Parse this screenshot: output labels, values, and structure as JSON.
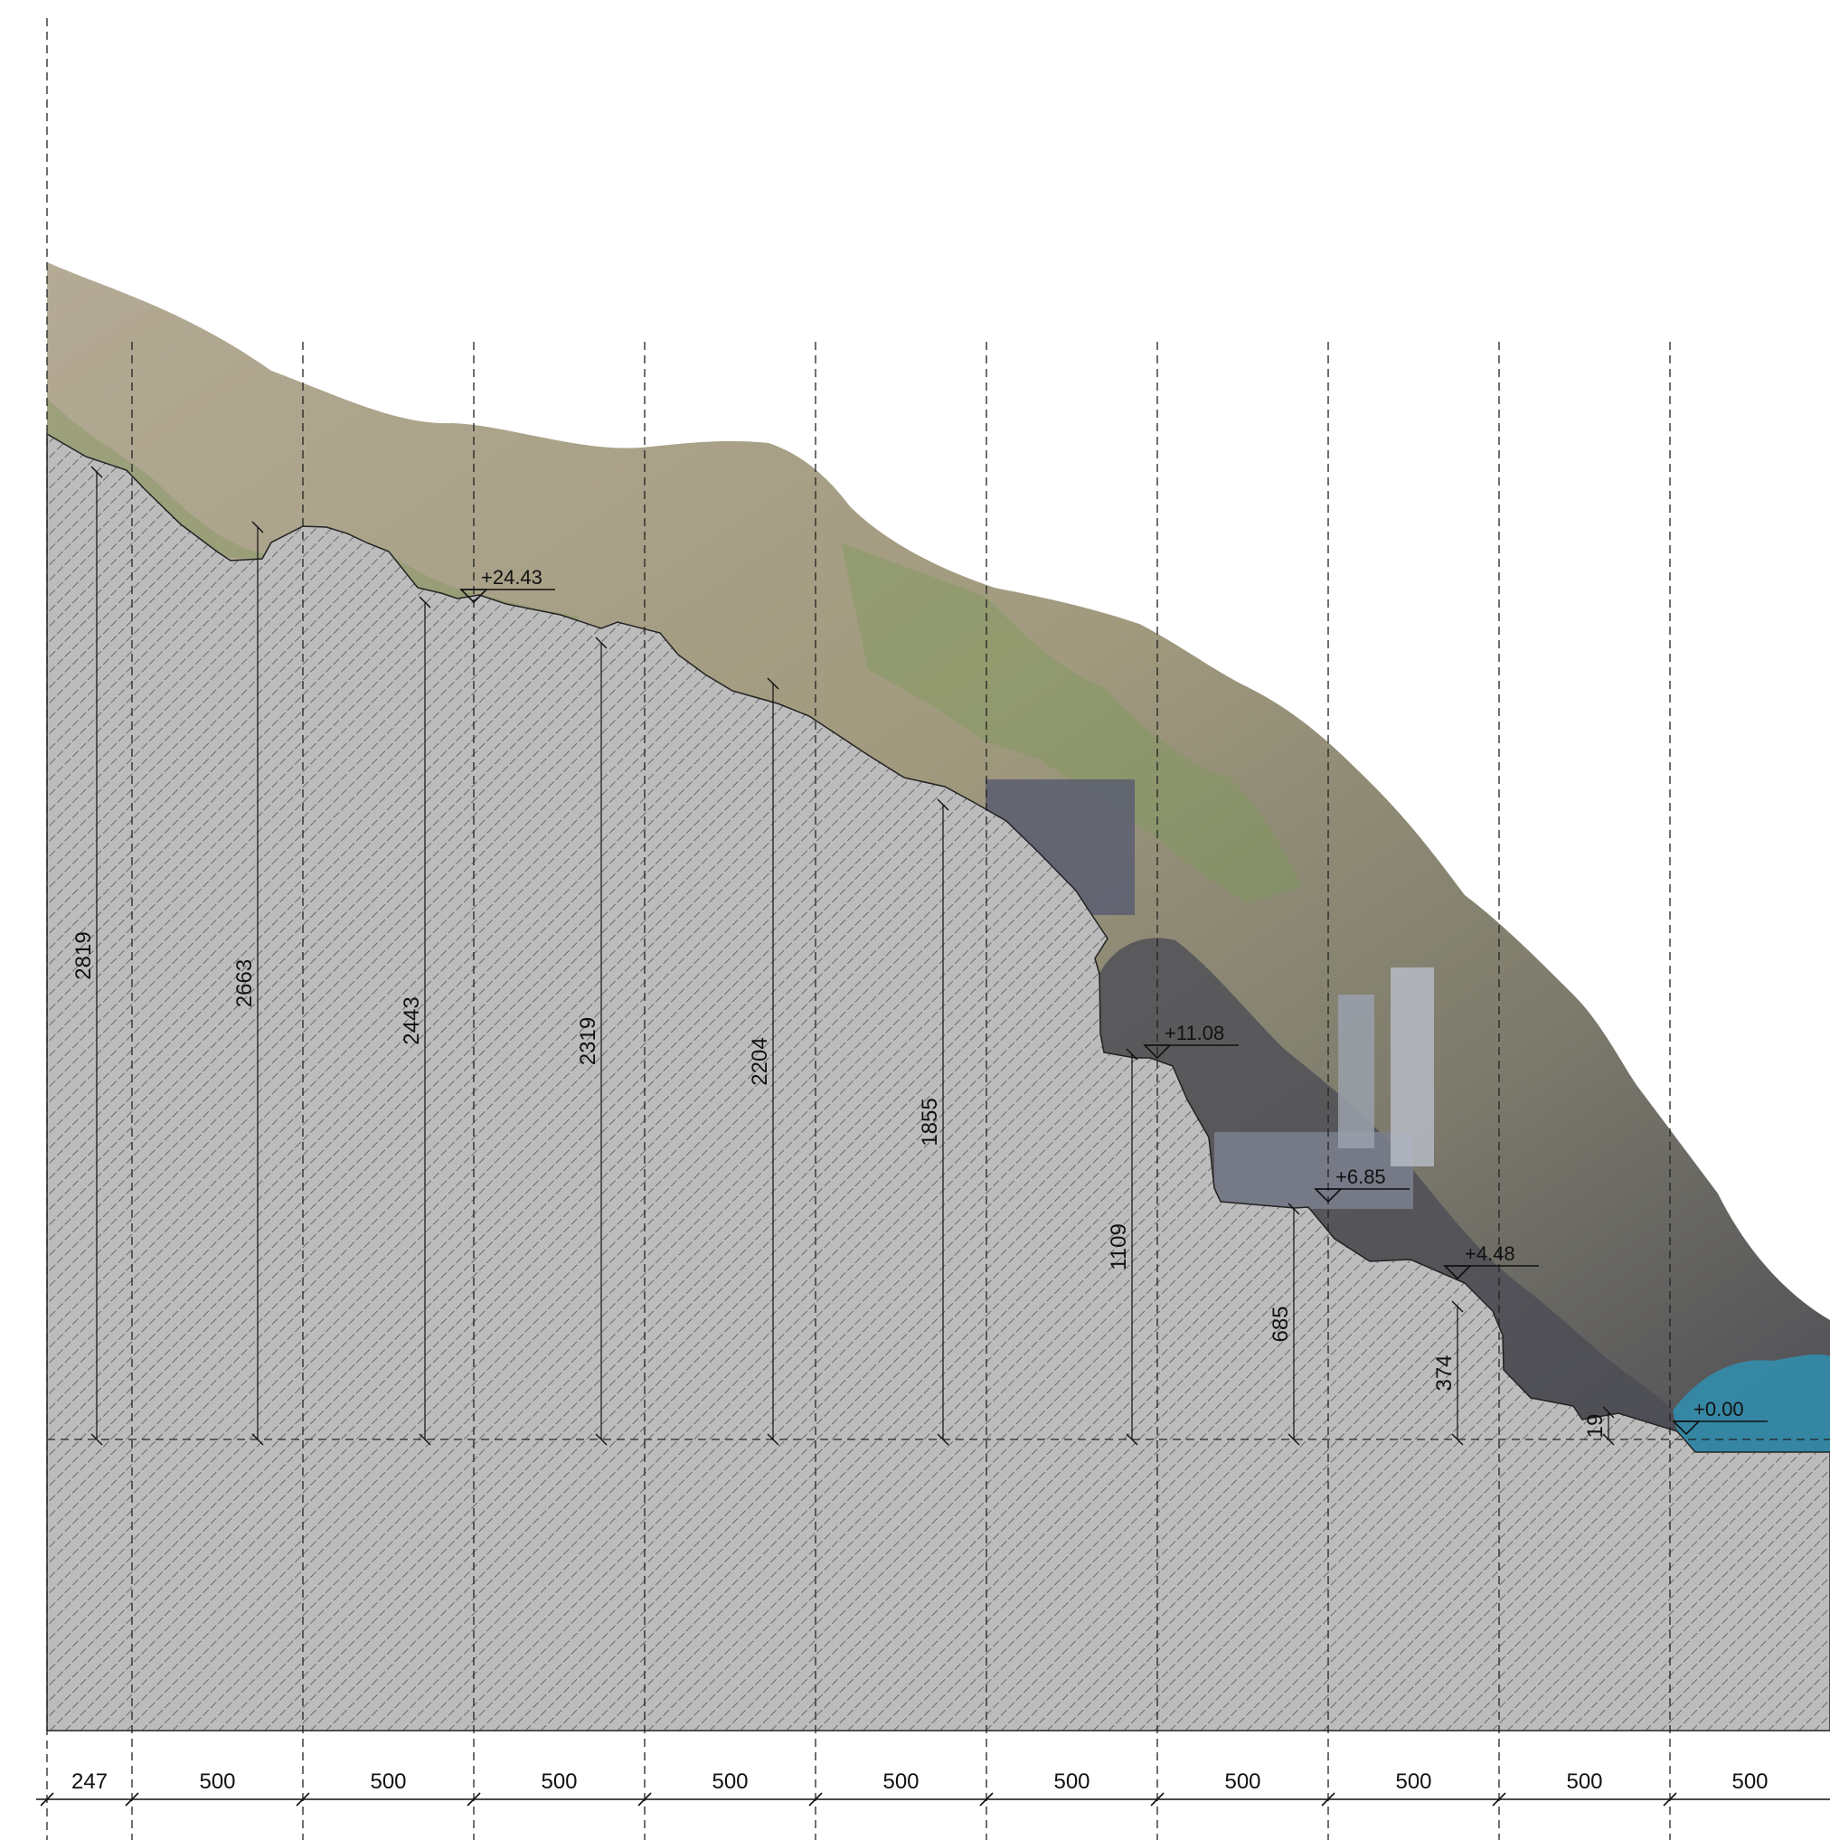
{
  "colors": {
    "section_fill": "#bcbcbc",
    "hatch": "#4a4a4a",
    "grass": "#a39a86",
    "rock": "#4b4c54",
    "water": "#2f8fb0",
    "line": "#111111"
  },
  "levels": [
    {
      "label": "+24.43"
    },
    {
      "label": "+11.08"
    },
    {
      "label": "+6.85"
    },
    {
      "label": "+4.48"
    },
    {
      "label": "+0.00"
    }
  ],
  "heights": [
    {
      "label": "2819"
    },
    {
      "label": "2663"
    },
    {
      "label": "2443"
    },
    {
      "label": "2319"
    },
    {
      "label": "2204"
    },
    {
      "label": "1855"
    },
    {
      "label": "1109"
    },
    {
      "label": "685"
    },
    {
      "label": "374"
    },
    {
      "label": "19"
    }
  ],
  "spacings": [
    {
      "label": "247"
    },
    {
      "label": "500"
    },
    {
      "label": "500"
    },
    {
      "label": "500"
    },
    {
      "label": "500"
    },
    {
      "label": "500"
    },
    {
      "label": "500"
    },
    {
      "label": "500"
    },
    {
      "label": "500"
    },
    {
      "label": "500"
    },
    {
      "label": "500"
    }
  ]
}
